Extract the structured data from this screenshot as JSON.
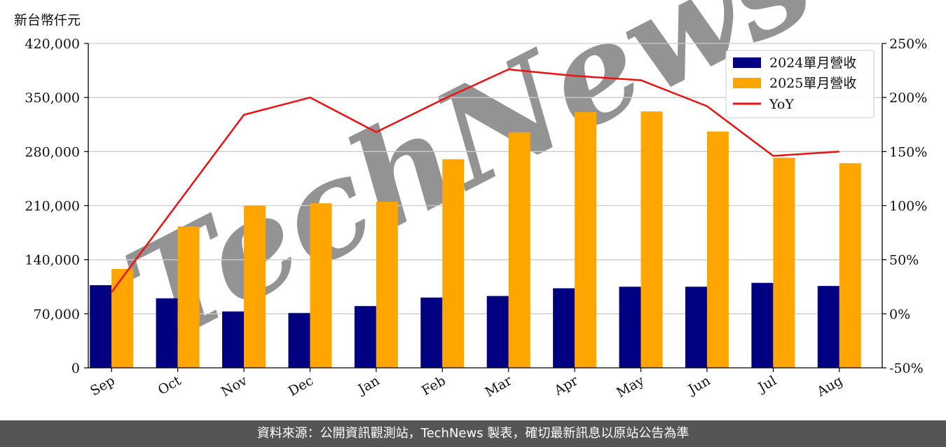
{
  "unit_label": "新台幣仟元",
  "footer_text": "資料來源：公開資訊觀測站，TechNews 製表，確切最新訊息以原站公告為準",
  "watermark_text": "TechNews",
  "colors": {
    "series_2024": "#000080",
    "series_2025": "#FFA500",
    "yoy": "#EE1111",
    "grid": "#cccccc",
    "footer_bg": "#555555"
  },
  "chart_data": {
    "type": "bar",
    "categories": [
      "Sep",
      "Oct",
      "Nov",
      "Dec",
      "Jan",
      "Feb",
      "Mar",
      "Apr",
      "May",
      "Jun",
      "Jul",
      "Aug"
    ],
    "series": [
      {
        "name": "2024單月營收",
        "type": "bar",
        "axis": "left",
        "values": [
          107000,
          90000,
          73000,
          71000,
          80000,
          91000,
          93000,
          103000,
          105000,
          105000,
          110000,
          106000
        ]
      },
      {
        "name": "2025單月營收",
        "type": "bar",
        "axis": "left",
        "values": [
          128000,
          183000,
          210000,
          213000,
          215000,
          270000,
          305000,
          331000,
          332000,
          306000,
          272000,
          265000
        ]
      },
      {
        "name": "YoY",
        "type": "line",
        "axis": "right",
        "values": [
          20,
          102,
          184,
          200,
          168,
          198,
          226,
          220,
          216,
          192,
          146,
          150
        ]
      }
    ],
    "y_left": {
      "min": 0,
      "max": 420000,
      "ticks": [
        0,
        70000,
        140000,
        210000,
        280000,
        350000,
        420000
      ],
      "tick_labels": [
        "0",
        "70,000",
        "140,000",
        "210,000",
        "280,000",
        "350,000",
        "420,000"
      ]
    },
    "y_right": {
      "min": -50,
      "max": 250,
      "ticks": [
        -50,
        0,
        50,
        100,
        150,
        200,
        250
      ],
      "tick_labels": [
        "-50%",
        "0%",
        "50%",
        "100%",
        "150%",
        "200%",
        "250%"
      ]
    },
    "grid": true,
    "legend_position": "top-right"
  }
}
